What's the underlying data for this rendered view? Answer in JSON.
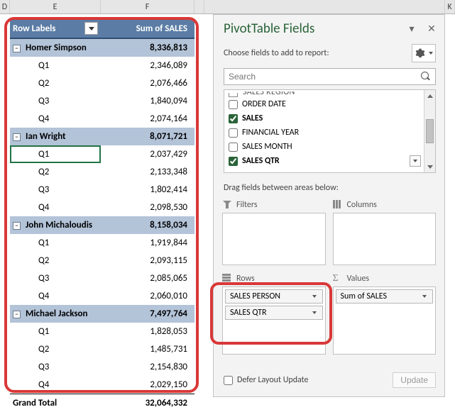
{
  "columns": {
    "d": "D",
    "e": "E",
    "f": "F",
    "k": "K"
  },
  "pivot": {
    "header": {
      "row_labels": "Row Labels",
      "sum": "Sum of SALES"
    },
    "groups": [
      {
        "name": "Homer Simpson",
        "total": "8,336,813",
        "rows": [
          {
            "label": "Q1",
            "value": "2,346,089",
            "selected": false
          },
          {
            "label": "Q2",
            "value": "2,076,466",
            "selected": false
          },
          {
            "label": "Q3",
            "value": "1,840,094",
            "selected": false
          },
          {
            "label": "Q4",
            "value": "2,074,164",
            "selected": false
          }
        ]
      },
      {
        "name": "Ian Wright",
        "total": "8,071,721",
        "rows": [
          {
            "label": "Q1",
            "value": "2,037,429",
            "selected": true
          },
          {
            "label": "Q2",
            "value": "2,133,348",
            "selected": false
          },
          {
            "label": "Q3",
            "value": "1,802,414",
            "selected": false
          },
          {
            "label": "Q4",
            "value": "2,098,530",
            "selected": false
          }
        ]
      },
      {
        "name": "John Michaloudis",
        "total": "8,158,034",
        "rows": [
          {
            "label": "Q1",
            "value": "1,919,844",
            "selected": false
          },
          {
            "label": "Q2",
            "value": "2,093,115",
            "selected": false
          },
          {
            "label": "Q3",
            "value": "2,085,065",
            "selected": false
          },
          {
            "label": "Q4",
            "value": "2,060,010",
            "selected": false
          }
        ]
      },
      {
        "name": "Michael Jackson",
        "total": "7,497,764",
        "rows": [
          {
            "label": "Q1",
            "value": "1,828,053",
            "selected": false
          },
          {
            "label": "Q2",
            "value": "1,485,731",
            "selected": false
          },
          {
            "label": "Q3",
            "value": "2,154,830",
            "selected": false
          },
          {
            "label": "Q4",
            "value": "2,029,150",
            "selected": false
          }
        ]
      }
    ],
    "grand_total": {
      "label": "Grand Total",
      "value": "32,064,332"
    }
  },
  "panel": {
    "title": "PivotTable Fields",
    "subtitle": "Choose fields to add to report:",
    "search_placeholder": "Search",
    "partial_field": "SALES REGION",
    "fields": [
      {
        "label": "ORDER DATE",
        "checked": false,
        "bold": false
      },
      {
        "label": "SALES",
        "checked": true,
        "bold": true
      },
      {
        "label": "FINANCIAL YEAR",
        "checked": false,
        "bold": false
      },
      {
        "label": "SALES MONTH",
        "checked": false,
        "bold": false
      },
      {
        "label": "SALES QTR",
        "checked": true,
        "bold": true
      }
    ],
    "drag_label": "Drag fields between areas below:",
    "areas": {
      "filters": {
        "label": "Filters",
        "items": []
      },
      "columns": {
        "label": "Columns",
        "items": []
      },
      "rows": {
        "label": "Rows",
        "items": [
          "SALES PERSON",
          "SALES QTR"
        ]
      },
      "values": {
        "label": "Values",
        "items": [
          "Sum of SALES"
        ]
      }
    },
    "defer": "Defer Layout Update",
    "update": "Update"
  }
}
